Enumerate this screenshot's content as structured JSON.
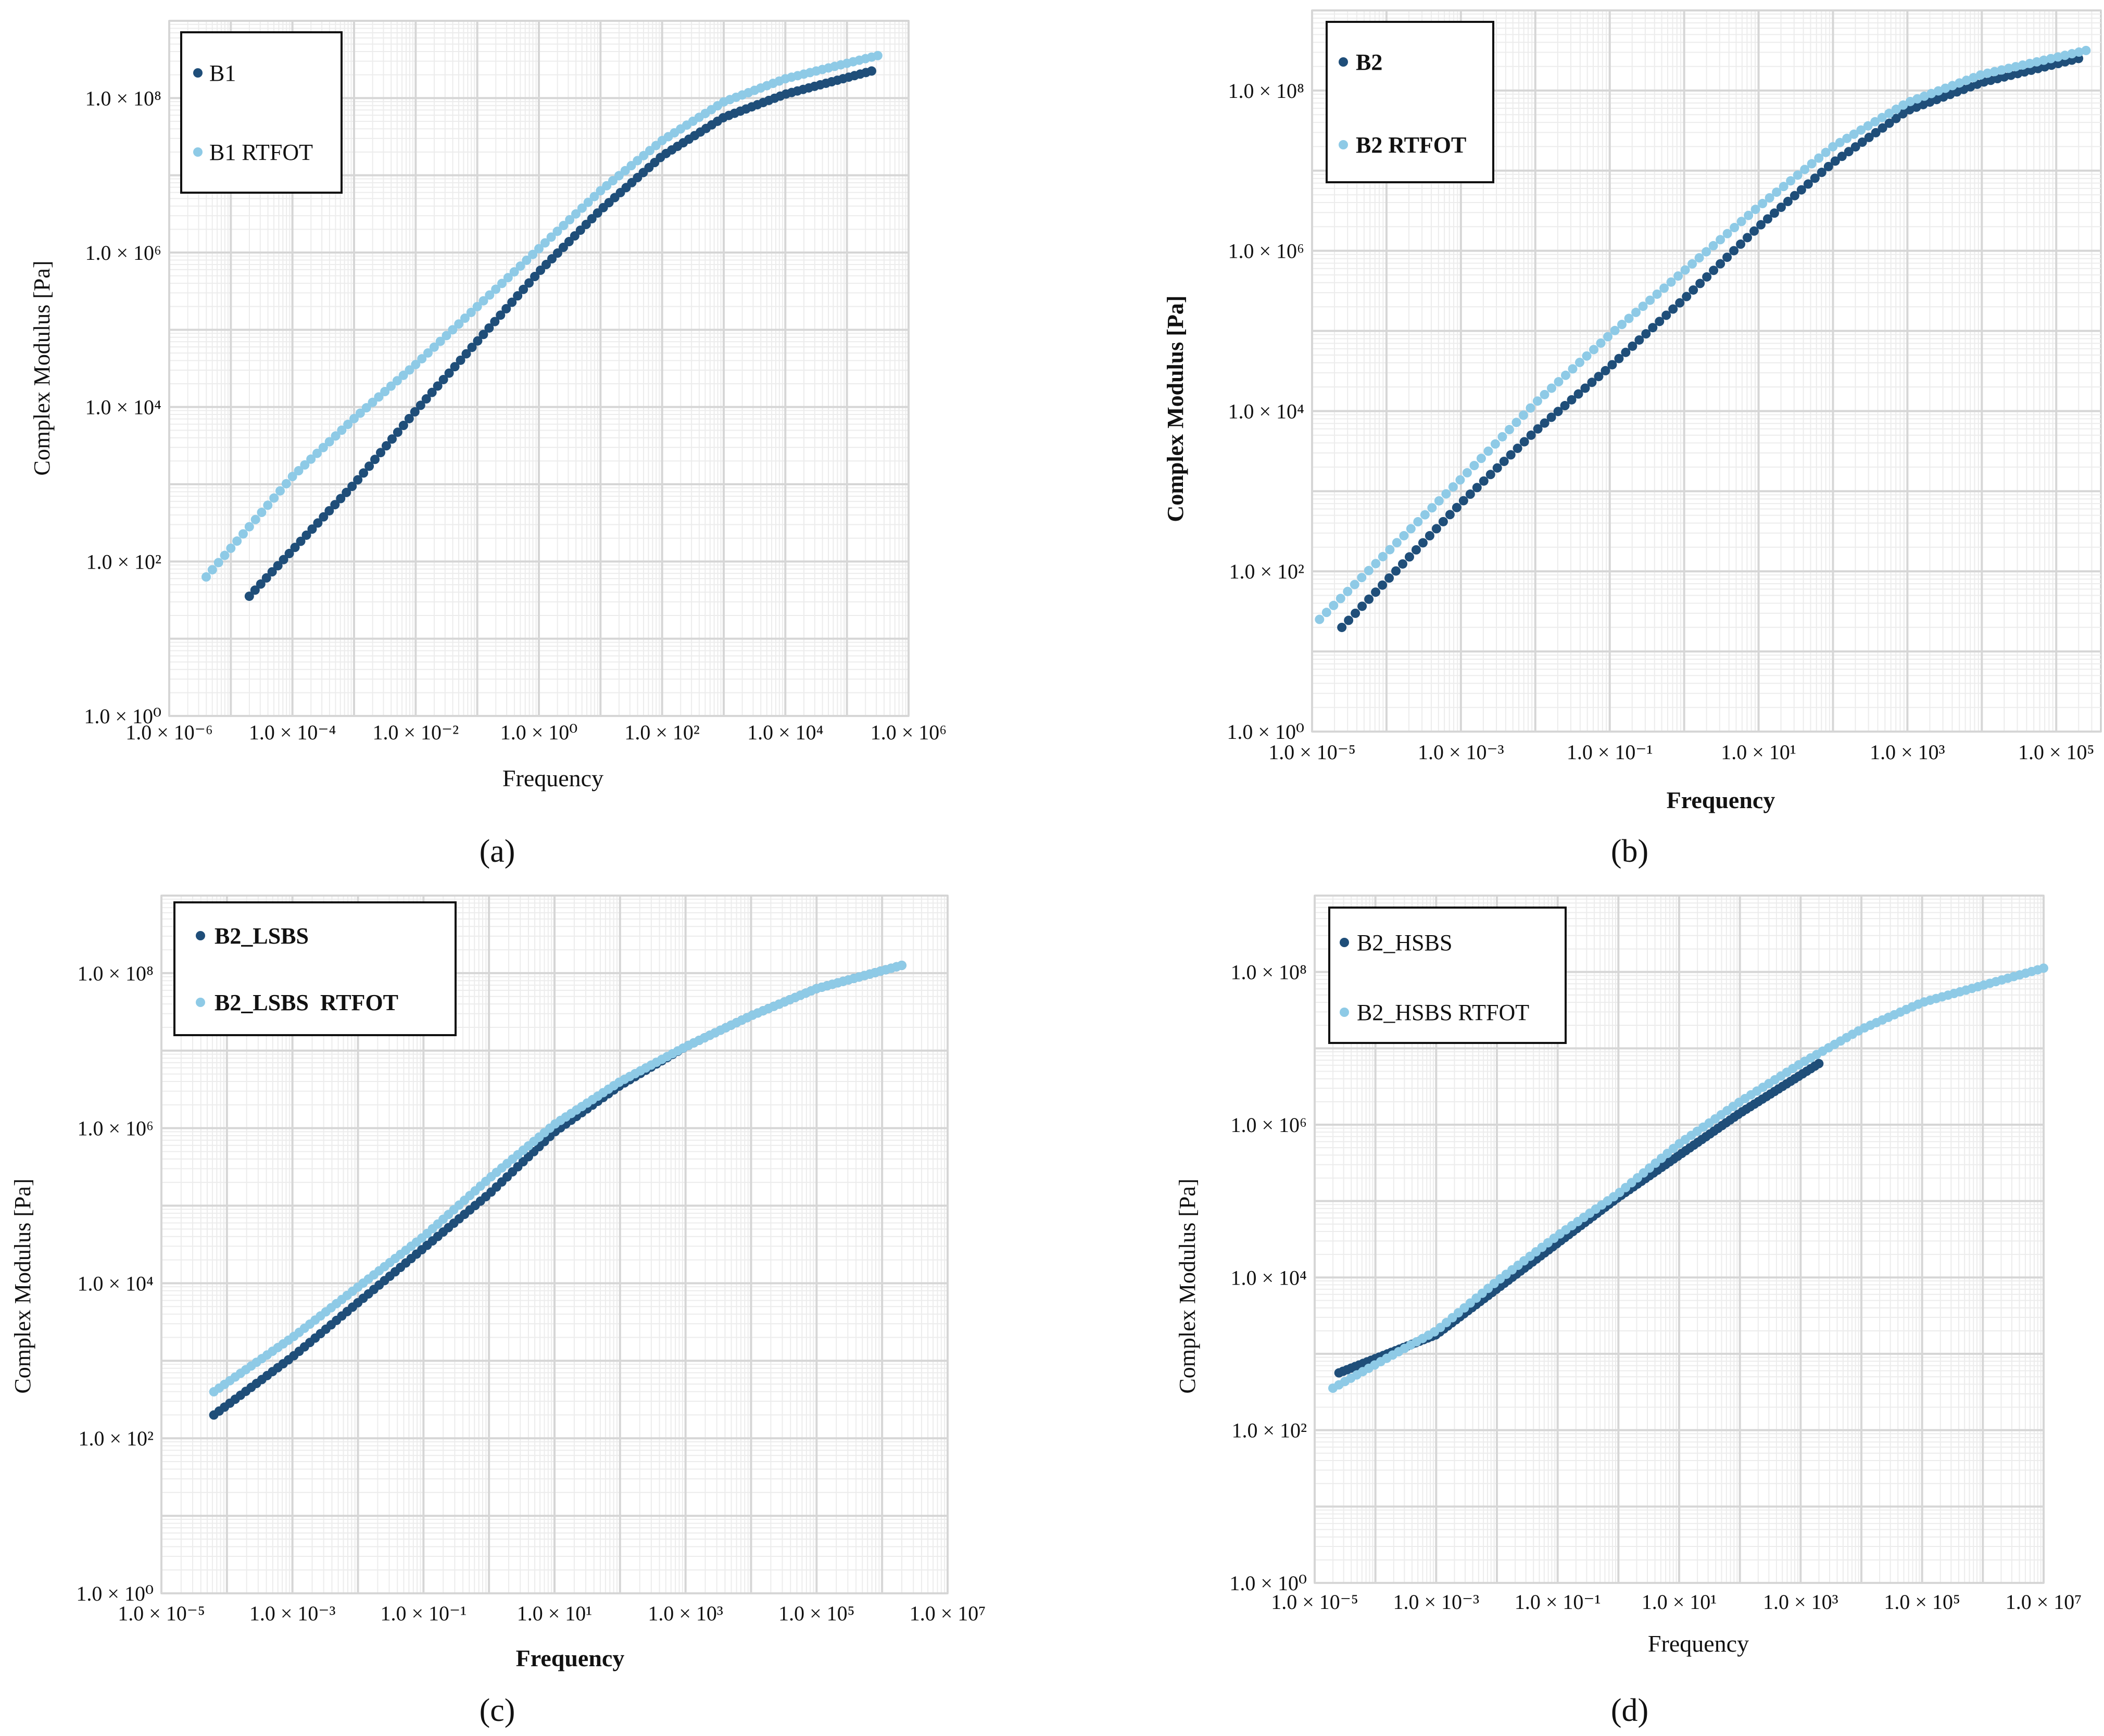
{
  "figure": {
    "panel_labels": [
      "(a)",
      "(b)",
      "(c)",
      "(d)"
    ],
    "colors": {
      "base": "#1f4e79",
      "rtfot": "#8ecae6",
      "grid": "#dddddd",
      "frame": "#c8c8c8"
    }
  },
  "chart_data": [
    {
      "type": "scatter",
      "panel": "(a)",
      "xlabel": "Frequency",
      "ylabel": "Complex Modulus [Pa]",
      "xscale": "log10",
      "yscale": "log10",
      "xlim_exp": [
        -6,
        6
      ],
      "ylim_exp": [
        0,
        9
      ],
      "xticks": [
        "1.0 × 10⁻⁶",
        "1.0 × 10⁻⁴",
        "1.0 × 10⁻²",
        "1.0 × 10⁰",
        "1.0 × 10²",
        "1.0 × 10⁴",
        "1.0 × 10⁶"
      ],
      "xtick_exp": [
        -6,
        -4,
        -2,
        0,
        2,
        4,
        6
      ],
      "yticks": [
        "1.0 × 10⁰",
        "1.0 × 10²",
        "1.0 × 10⁴",
        "1.0 × 10⁶",
        "1.0 × 10⁸"
      ],
      "ytick_exp": [
        0,
        2,
        4,
        6,
        8
      ],
      "legend": {
        "position": "top-left",
        "bold": false
      },
      "series": [
        {
          "name": "B1",
          "color": "#1f4e79",
          "n": 110,
          "log_x": [
            -4.7,
            -3.0,
            -2.0,
            -1.0,
            0.0,
            1.0,
            2.0,
            3.0,
            4.0,
            5.4
          ],
          "log_y": [
            1.55,
            3.0,
            3.95,
            4.85,
            5.75,
            6.55,
            7.25,
            7.75,
            8.05,
            8.35
          ]
        },
        {
          "name": "B1 RTFOT",
          "color": "#8ecae6",
          "n": 110,
          "log_x": [
            -5.4,
            -4.0,
            -3.0,
            -2.0,
            -1.0,
            0.0,
            1.0,
            2.0,
            3.0,
            4.0,
            5.5
          ],
          "log_y": [
            1.8,
            3.1,
            3.85,
            4.55,
            5.3,
            6.05,
            6.8,
            7.45,
            7.95,
            8.25,
            8.55
          ]
        }
      ]
    },
    {
      "type": "scatter",
      "panel": "(b)",
      "xlabel": "Frequency",
      "ylabel": "Complex Modulus [Pa]",
      "xscale": "log10",
      "yscale": "log10",
      "xlim_exp": [
        -5,
        5.6
      ],
      "ylim_exp": [
        0,
        9
      ],
      "xticks": [
        "1.0 × 10⁻⁵",
        "1.0 × 10⁻³",
        "1.0 × 10⁻¹",
        "1.0 × 10¹",
        "1.0 × 10³",
        "1.0 × 10⁵"
      ],
      "xtick_exp": [
        -5,
        -3,
        -1,
        1,
        3,
        5
      ],
      "yticks": [
        "1.0 × 10⁰",
        "1.0 × 10²",
        "1.0 × 10⁴",
        "1.0 × 10⁶",
        "1.0 × 10⁸"
      ],
      "ytick_exp": [
        0,
        2,
        4,
        6,
        8
      ],
      "legend": {
        "position": "top-left",
        "bold": true
      },
      "series": [
        {
          "name": "B2",
          "color": "#1f4e79",
          "n": 110,
          "log_x": [
            -4.6,
            -3.0,
            -2.0,
            -1.0,
            0.0,
            1.0,
            2.0,
            3.0,
            4.0,
            5.3
          ],
          "log_y": [
            1.3,
            2.85,
            3.75,
            4.55,
            5.4,
            6.3,
            7.1,
            7.75,
            8.1,
            8.4
          ]
        },
        {
          "name": "B2 RTFOT",
          "color": "#8ecae6",
          "n": 110,
          "log_x": [
            -4.9,
            -3.0,
            -2.0,
            -1.0,
            0.0,
            1.0,
            2.0,
            3.0,
            4.0,
            5.4
          ],
          "log_y": [
            1.4,
            3.15,
            4.1,
            4.95,
            5.75,
            6.55,
            7.3,
            7.85,
            8.2,
            8.5
          ]
        }
      ]
    },
    {
      "type": "scatter",
      "panel": "(c)",
      "xlabel": "Frequency",
      "ylabel": "Complex Modulus [Pa]",
      "xscale": "log10",
      "yscale": "log10",
      "xlim_exp": [
        -5,
        7
      ],
      "ylim_exp": [
        0,
        9
      ],
      "xticks": [
        "1.0 × 10⁻⁵",
        "1.0 × 10⁻³",
        "1.0 × 10⁻¹",
        "1.0 × 10¹",
        "1.0 × 10³",
        "1.0 × 10⁵",
        "1.0 × 10⁷"
      ],
      "xtick_exp": [
        -5,
        -3,
        -1,
        1,
        3,
        5,
        7
      ],
      "yticks": [
        "1.0 × 10⁰",
        "1.0 × 10²",
        "1.0 × 10⁴",
        "1.0 × 10⁶",
        "1.0 × 10⁸"
      ],
      "ytick_exp": [
        0,
        2,
        4,
        6,
        8
      ],
      "legend": {
        "position": "top-left",
        "bold": true
      },
      "series": [
        {
          "name": "B2_LSBS",
          "color": "#1f4e79",
          "n": 130,
          "log_x": [
            -4.2,
            -3.0,
            -2.0,
            -1.0,
            0.0,
            1.0,
            2.0,
            3.0,
            4.0,
            5.0,
            6.3
          ],
          "log_y": [
            2.3,
            3.05,
            3.75,
            4.45,
            5.15,
            5.95,
            6.55,
            7.05,
            7.45,
            7.8,
            8.1
          ]
        },
        {
          "name": "B2_LSBS  RTFOT",
          "color": "#8ecae6",
          "n": 130,
          "log_x": [
            -4.2,
            -3.0,
            -2.0,
            -1.0,
            0.0,
            1.0,
            2.0,
            3.0,
            4.0,
            5.0,
            6.3
          ],
          "log_y": [
            2.6,
            3.3,
            3.95,
            4.6,
            5.35,
            6.05,
            6.6,
            7.05,
            7.45,
            7.8,
            8.1
          ]
        }
      ]
    },
    {
      "type": "scatter",
      "panel": "(d)",
      "xlabel": "Frequency",
      "ylabel": "Complex Modulus [Pa]",
      "xscale": "log10",
      "yscale": "log10",
      "xlim_exp": [
        -5,
        7
      ],
      "ylim_exp": [
        0,
        9
      ],
      "xticks": [
        "1.0 × 10⁻⁵",
        "1.0 × 10⁻³",
        "1.0 × 10⁻¹",
        "1.0 × 10¹",
        "1.0 × 10³",
        "1.0 × 10⁵",
        "1.0 × 10⁷"
      ],
      "xtick_exp": [
        -5,
        -3,
        -1,
        1,
        3,
        5,
        7
      ],
      "yticks": [
        "1.0 × 10⁰",
        "1.0 × 10²",
        "1.0 × 10⁴",
        "1.0 × 10⁶",
        "1.0 × 10⁸"
      ],
      "ytick_exp": [
        0,
        2,
        4,
        6,
        8
      ],
      "legend": {
        "position": "top-left",
        "bold": false
      },
      "series": [
        {
          "name": "B2_HSBS",
          "color": "#1f4e79",
          "n": 120,
          "log_x": [
            -4.6,
            -3.0,
            -2.0,
            -1.0,
            0.0,
            1.0,
            2.0,
            3.0,
            3.3
          ],
          "log_y": [
            2.75,
            3.25,
            3.85,
            4.45,
            5.05,
            5.6,
            6.15,
            6.65,
            6.8
          ]
        },
        {
          "name": "B2_HSBS RTFOT",
          "color": "#8ecae6",
          "n": 120,
          "log_x": [
            -4.7,
            -3.0,
            -2.0,
            -1.0,
            0.0,
            1.0,
            2.0,
            3.0,
            4.0,
            5.0,
            7.0
          ],
          "log_y": [
            2.55,
            3.3,
            3.95,
            4.55,
            5.1,
            5.75,
            6.3,
            6.8,
            7.25,
            7.6,
            8.05
          ]
        }
      ]
    }
  ]
}
